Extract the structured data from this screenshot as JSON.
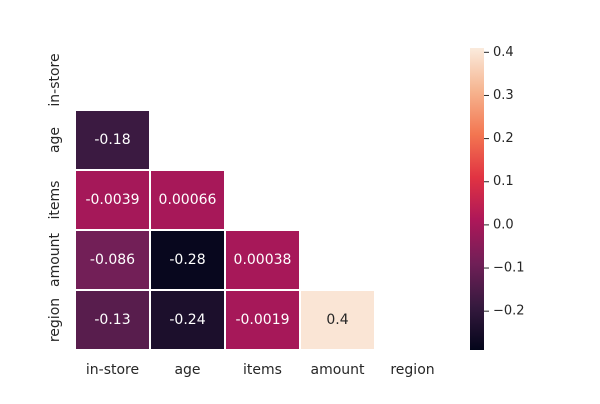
{
  "chart_data": {
    "type": "heatmap",
    "title": "",
    "xlabel": "",
    "ylabel": "",
    "mask": "upper-triangle-including-diagonal",
    "x_labels": [
      "in-store",
      "age",
      "items",
      "amount",
      "region"
    ],
    "y_labels": [
      "in-store",
      "age",
      "items",
      "amount",
      "region"
    ],
    "matrix": [
      [
        null,
        null,
        null,
        null,
        null
      ],
      [
        -0.18,
        null,
        null,
        null,
        null
      ],
      [
        -0.0039,
        0.00066,
        null,
        null,
        null
      ],
      [
        -0.086,
        -0.28,
        0.00038,
        null,
        null
      ],
      [
        -0.13,
        -0.24,
        -0.0019,
        0.4,
        null
      ]
    ],
    "cell_labels": [
      [
        null,
        null,
        null,
        null,
        null
      ],
      [
        "-0.18",
        null,
        null,
        null,
        null
      ],
      [
        "-0.0039",
        "0.00066",
        null,
        null,
        null
      ],
      [
        "-0.086",
        "-0.28",
        "0.00038",
        null,
        null
      ],
      [
        "-0.13",
        "-0.24",
        "-0.0019",
        "0.4",
        null
      ]
    ],
    "colorbar": {
      "colormap": "rocket",
      "vmin": -0.29,
      "vmax": 0.41,
      "ticks": [
        0.4,
        0.3,
        0.2,
        0.1,
        0.0,
        -0.1,
        -0.2
      ],
      "tick_labels": [
        "0.4",
        "0.3",
        "0.2",
        "0.1",
        "0.0",
        "−0.1",
        "−0.2"
      ]
    },
    "colormap_stops": [
      "#03051a",
      "#35193e",
      "#701f57",
      "#ad1759",
      "#e13342",
      "#f37651",
      "#f6b48f",
      "#faebdd"
    ],
    "grid": false,
    "cell_border_color": "#ffffff"
  }
}
